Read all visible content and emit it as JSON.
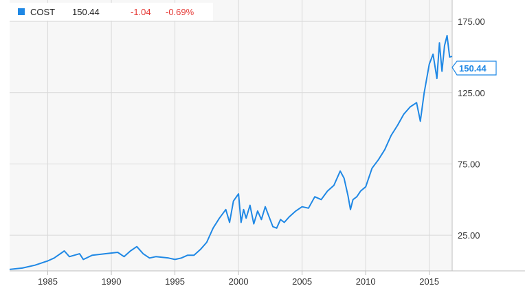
{
  "legend": {
    "ticker": "COST",
    "price": "150.44",
    "change": "-1.04",
    "change_pct": "-0.69%",
    "marker_color": "#1f88e5",
    "negative_color": "#e53935"
  },
  "last_price_tag": "150.44",
  "colors": {
    "line": "#1f88e5",
    "plot_bg": "#f7f7f7",
    "grid": "#d9d9d9",
    "axis": "#bdbdbd"
  },
  "chart_data": {
    "type": "line",
    "title": "",
    "xlabel": "",
    "ylabel": "",
    "xlim": [
      1982.0,
      2016.8
    ],
    "ylim": [
      0,
      190
    ],
    "grid": true,
    "legend_position": "top-left",
    "x_ticks": [
      1985,
      1990,
      1995,
      2000,
      2005,
      2010,
      2015
    ],
    "x_tick_labels": [
      "1985",
      "1990",
      "1995",
      "2000",
      "2005",
      "2010",
      "2015"
    ],
    "y_ticks": [
      25,
      75,
      125,
      175
    ],
    "y_tick_labels": [
      "25.00",
      "75.00",
      "125.00",
      "175.00"
    ],
    "series": [
      {
        "name": "COST",
        "x": [
          1982.0,
          1983.0,
          1984.0,
          1985.0,
          1985.5,
          1986.3,
          1986.7,
          1987.5,
          1987.8,
          1988.5,
          1989.5,
          1990.5,
          1991.0,
          1991.5,
          1992.0,
          1992.5,
          1993.0,
          1993.5,
          1994.5,
          1995.0,
          1995.5,
          1996.0,
          1996.5,
          1997.0,
          1997.5,
          1998.0,
          1998.5,
          1999.0,
          1999.3,
          1999.6,
          2000.0,
          2000.2,
          2000.4,
          2000.6,
          2000.9,
          2001.2,
          2001.5,
          2001.8,
          2002.1,
          2002.4,
          2002.7,
          2003.0,
          2003.3,
          2003.6,
          2004.0,
          2004.5,
          2005.0,
          2005.5,
          2006.0,
          2006.5,
          2007.0,
          2007.5,
          2008.0,
          2008.3,
          2008.6,
          2008.8,
          2009.0,
          2009.3,
          2009.6,
          2010.0,
          2010.5,
          2011.0,
          2011.5,
          2012.0,
          2012.5,
          2013.0,
          2013.5,
          2014.0,
          2014.3,
          2014.6,
          2015.0,
          2015.3,
          2015.6,
          2015.8,
          2016.0,
          2016.2,
          2016.4,
          2016.6,
          2016.8
        ],
        "values": [
          1,
          2,
          4,
          7,
          9,
          14,
          10,
          12,
          8,
          11,
          12,
          13,
          10,
          14,
          17,
          12,
          9,
          10,
          9,
          8,
          9,
          11,
          11,
          15,
          20,
          30,
          37,
          43,
          34,
          49,
          54,
          34,
          43,
          37,
          46,
          33,
          42,
          36,
          45,
          38,
          31,
          30,
          36,
          34,
          38,
          42,
          45,
          44,
          52,
          50,
          56,
          60,
          70,
          65,
          53,
          43,
          50,
          52,
          56,
          59,
          72,
          78,
          85,
          95,
          102,
          110,
          115,
          118,
          105,
          125,
          145,
          152,
          135,
          160,
          140,
          158,
          165,
          150,
          150.44
        ]
      }
    ]
  }
}
